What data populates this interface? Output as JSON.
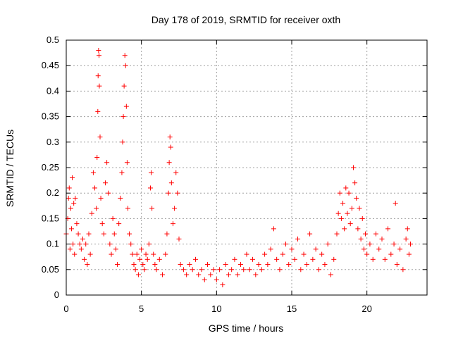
{
  "chart_data": {
    "type": "scatter",
    "title": "Day 178 of 2019, SRMTID for receiver oxth",
    "xlabel": "GPS time / hours",
    "ylabel": "SRMTID / TECUs",
    "xlim": [
      0,
      24
    ],
    "ylim": [
      0,
      0.5
    ],
    "x_ticks": [
      0,
      5,
      10,
      15,
      20
    ],
    "y_ticks": [
      0,
      0.05,
      0.1,
      0.15,
      0.2,
      0.25,
      0.3,
      0.35,
      0.4,
      0.45,
      0.5
    ],
    "grid": true,
    "marker": "+",
    "marker_color": "#ff0000",
    "series": [
      {
        "name": "SRMTID",
        "points": [
          [
            0.0,
            0.12
          ],
          [
            0.1,
            0.15
          ],
          [
            0.15,
            0.19
          ],
          [
            0.2,
            0.21
          ],
          [
            0.25,
            0.09
          ],
          [
            0.3,
            0.17
          ],
          [
            0.35,
            0.13
          ],
          [
            0.4,
            0.23
          ],
          [
            0.45,
            0.1
          ],
          [
            0.5,
            0.18
          ],
          [
            0.55,
            0.08
          ],
          [
            0.6,
            0.19
          ],
          [
            0.7,
            0.14
          ],
          [
            0.8,
            0.12
          ],
          [
            0.9,
            0.1
          ],
          [
            1.0,
            0.09
          ],
          [
            1.1,
            0.11
          ],
          [
            1.2,
            0.07
          ],
          [
            1.3,
            0.1
          ],
          [
            1.4,
            0.06
          ],
          [
            1.5,
            0.12
          ],
          [
            1.6,
            0.08
          ],
          [
            1.7,
            0.16
          ],
          [
            1.8,
            0.24
          ],
          [
            1.9,
            0.21
          ],
          [
            2.0,
            0.17
          ],
          [
            2.05,
            0.27
          ],
          [
            2.1,
            0.36
          ],
          [
            2.12,
            0.43
          ],
          [
            2.15,
            0.48
          ],
          [
            2.18,
            0.47
          ],
          [
            2.2,
            0.41
          ],
          [
            2.25,
            0.31
          ],
          [
            2.3,
            0.19
          ],
          [
            2.4,
            0.14
          ],
          [
            2.5,
            0.12
          ],
          [
            2.6,
            0.22
          ],
          [
            2.7,
            0.26
          ],
          [
            2.8,
            0.2
          ],
          [
            2.9,
            0.1
          ],
          [
            3.0,
            0.08
          ],
          [
            3.1,
            0.15
          ],
          [
            3.2,
            0.12
          ],
          [
            3.3,
            0.09
          ],
          [
            3.4,
            0.06
          ],
          [
            3.5,
            0.14
          ],
          [
            3.6,
            0.19
          ],
          [
            3.7,
            0.24
          ],
          [
            3.75,
            0.3
          ],
          [
            3.8,
            0.35
          ],
          [
            3.85,
            0.41
          ],
          [
            3.9,
            0.47
          ],
          [
            3.95,
            0.45
          ],
          [
            4.0,
            0.37
          ],
          [
            4.05,
            0.26
          ],
          [
            4.1,
            0.17
          ],
          [
            4.2,
            0.12
          ],
          [
            4.3,
            0.1
          ],
          [
            4.4,
            0.08
          ],
          [
            4.5,
            0.06
          ],
          [
            4.6,
            0.05
          ],
          [
            4.7,
            0.08
          ],
          [
            4.8,
            0.04
          ],
          [
            4.9,
            0.07
          ],
          [
            5.0,
            0.09
          ],
          [
            5.1,
            0.06
          ],
          [
            5.2,
            0.05
          ],
          [
            5.3,
            0.08
          ],
          [
            5.4,
            0.07
          ],
          [
            5.5,
            0.1
          ],
          [
            5.6,
            0.21
          ],
          [
            5.65,
            0.24
          ],
          [
            5.7,
            0.17
          ],
          [
            5.8,
            0.08
          ],
          [
            5.9,
            0.06
          ],
          [
            6.0,
            0.05
          ],
          [
            6.2,
            0.07
          ],
          [
            6.4,
            0.04
          ],
          [
            6.6,
            0.08
          ],
          [
            6.7,
            0.12
          ],
          [
            6.8,
            0.2
          ],
          [
            6.85,
            0.26
          ],
          [
            6.9,
            0.31
          ],
          [
            6.95,
            0.29
          ],
          [
            7.0,
            0.22
          ],
          [
            7.1,
            0.14
          ],
          [
            7.2,
            0.17
          ],
          [
            7.3,
            0.24
          ],
          [
            7.4,
            0.2
          ],
          [
            7.5,
            0.11
          ],
          [
            7.6,
            0.06
          ],
          [
            7.8,
            0.05
          ],
          [
            8.0,
            0.04
          ],
          [
            8.2,
            0.06
          ],
          [
            8.4,
            0.05
          ],
          [
            8.6,
            0.07
          ],
          [
            8.8,
            0.04
          ],
          [
            9.0,
            0.05
          ],
          [
            9.2,
            0.03
          ],
          [
            9.4,
            0.06
          ],
          [
            9.6,
            0.04
          ],
          [
            9.8,
            0.05
          ],
          [
            10.0,
            0.03
          ],
          [
            10.2,
            0.05
          ],
          [
            10.4,
            0.02
          ],
          [
            10.6,
            0.06
          ],
          [
            10.8,
            0.04
          ],
          [
            11.0,
            0.05
          ],
          [
            11.2,
            0.07
          ],
          [
            11.4,
            0.04
          ],
          [
            11.6,
            0.06
          ],
          [
            11.8,
            0.05
          ],
          [
            12.0,
            0.08
          ],
          [
            12.2,
            0.05
          ],
          [
            12.4,
            0.07
          ],
          [
            12.6,
            0.04
          ],
          [
            12.8,
            0.06
          ],
          [
            13.0,
            0.05
          ],
          [
            13.2,
            0.08
          ],
          [
            13.4,
            0.06
          ],
          [
            13.6,
            0.09
          ],
          [
            13.8,
            0.13
          ],
          [
            14.0,
            0.07
          ],
          [
            14.2,
            0.05
          ],
          [
            14.4,
            0.08
          ],
          [
            14.6,
            0.1
          ],
          [
            14.8,
            0.06
          ],
          [
            15.0,
            0.09
          ],
          [
            15.2,
            0.07
          ],
          [
            15.4,
            0.11
          ],
          [
            15.6,
            0.05
          ],
          [
            15.8,
            0.08
          ],
          [
            16.0,
            0.06
          ],
          [
            16.2,
            0.12
          ],
          [
            16.4,
            0.07
          ],
          [
            16.6,
            0.09
          ],
          [
            16.8,
            0.05
          ],
          [
            17.0,
            0.08
          ],
          [
            17.2,
            0.06
          ],
          [
            17.4,
            0.1
          ],
          [
            17.6,
            0.04
          ],
          [
            17.8,
            0.07
          ],
          [
            18.0,
            0.12
          ],
          [
            18.1,
            0.16
          ],
          [
            18.2,
            0.2
          ],
          [
            18.3,
            0.15
          ],
          [
            18.4,
            0.18
          ],
          [
            18.5,
            0.13
          ],
          [
            18.6,
            0.21
          ],
          [
            18.7,
            0.16
          ],
          [
            18.8,
            0.2
          ],
          [
            18.9,
            0.14
          ],
          [
            19.0,
            0.17
          ],
          [
            19.1,
            0.25
          ],
          [
            19.2,
            0.22
          ],
          [
            19.3,
            0.19
          ],
          [
            19.4,
            0.13
          ],
          [
            19.5,
            0.17
          ],
          [
            19.6,
            0.11
          ],
          [
            19.7,
            0.15
          ],
          [
            19.8,
            0.09
          ],
          [
            19.9,
            0.12
          ],
          [
            20.0,
            0.08
          ],
          [
            20.2,
            0.1
          ],
          [
            20.4,
            0.07
          ],
          [
            20.6,
            0.12
          ],
          [
            20.8,
            0.09
          ],
          [
            21.0,
            0.11
          ],
          [
            21.2,
            0.07
          ],
          [
            21.4,
            0.13
          ],
          [
            21.6,
            0.08
          ],
          [
            21.8,
            0.1
          ],
          [
            21.9,
            0.18
          ],
          [
            22.0,
            0.06
          ],
          [
            22.2,
            0.09
          ],
          [
            22.4,
            0.05
          ],
          [
            22.6,
            0.11
          ],
          [
            22.7,
            0.13
          ],
          [
            22.8,
            0.08
          ],
          [
            22.9,
            0.1
          ]
        ]
      }
    ]
  }
}
